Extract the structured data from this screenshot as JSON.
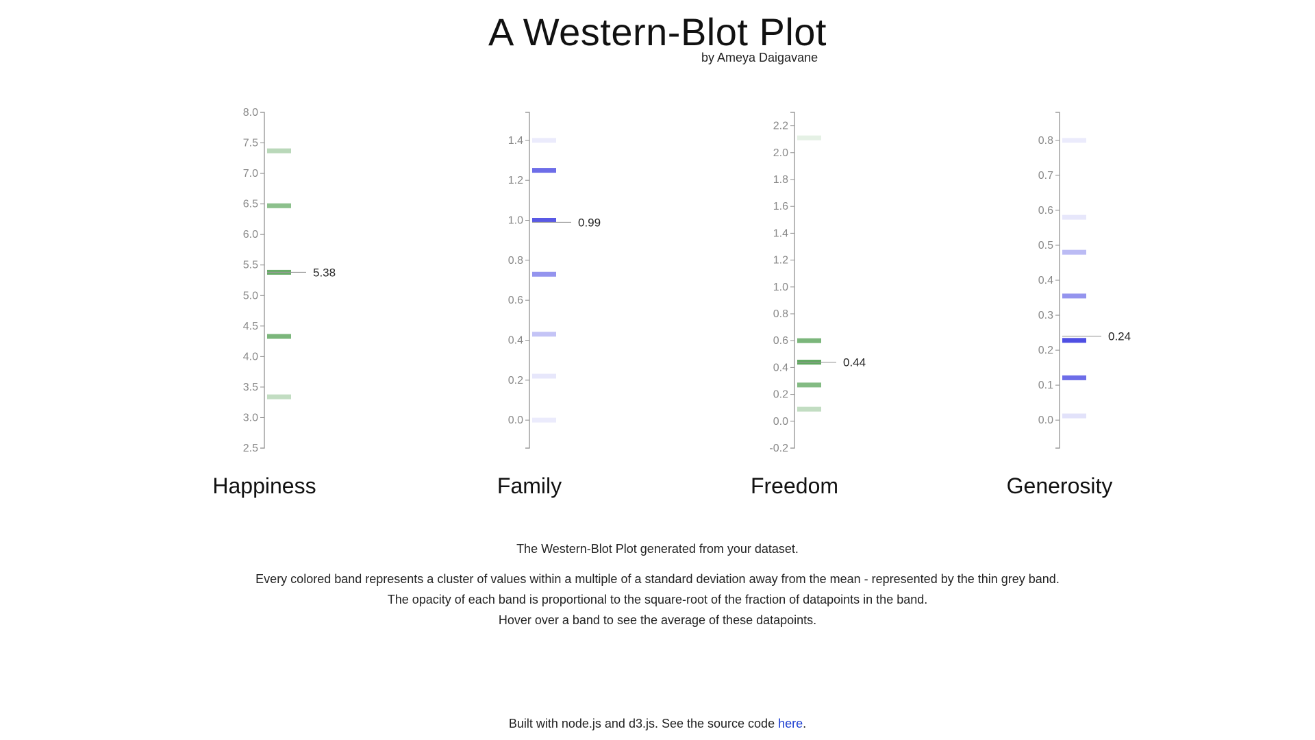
{
  "header": {
    "title": "A Western-Blot Plot",
    "byline": "by Ameya Daigavane"
  },
  "description": {
    "caption": "The Western-Blot Plot generated from your dataset.",
    "line1": "Every colored band represents a cluster of values within a multiple of a standard deviation away from the mean - represented by the thin grey band.",
    "line2": "The opacity of each band is proportional to the square-root of the fraction of datapoints in the band.",
    "line3": "Hover over a band to see the average of these datapoints."
  },
  "footer": {
    "text": "Built with node.js and d3.js. See the source code ",
    "link_text": "here",
    "suffix": "."
  },
  "colors": {
    "green": "#4f9e4f",
    "blue": "#3c3ce0",
    "axis": "#888888",
    "mean_line": "#999999",
    "link": "#1a3cd0"
  },
  "chart_data": [
    {
      "type": "bar",
      "xlabel": "Happiness",
      "color": "green",
      "ylim": [
        2.5,
        8.0
      ],
      "ticks": [
        2.5,
        3.0,
        3.5,
        4.0,
        4.5,
        5.0,
        5.5,
        6.0,
        6.5,
        7.0,
        7.5,
        8.0
      ],
      "tick_labels": [
        "2.5",
        "3.0",
        "3.5",
        "4.0",
        "4.5",
        "5.0",
        "5.5",
        "6.0",
        "6.5",
        "7.0",
        "7.5",
        "8.0"
      ],
      "mean": 5.38,
      "mean_label": "5.38",
      "bands": [
        {
          "value": 7.37,
          "opacity": 0.4
        },
        {
          "value": 6.47,
          "opacity": 0.65
        },
        {
          "value": 5.38,
          "opacity": 0.85
        },
        {
          "value": 4.33,
          "opacity": 0.75
        },
        {
          "value": 3.34,
          "opacity": 0.35
        }
      ]
    },
    {
      "type": "bar",
      "xlabel": "Family",
      "color": "blue",
      "ylim": [
        -0.14,
        1.54
      ],
      "ticks": [
        0.0,
        0.2,
        0.4,
        0.6,
        0.8,
        1.0,
        1.2,
        1.4
      ],
      "tick_labels": [
        "0.0",
        "0.2",
        "0.4",
        "0.6",
        "0.8",
        "1.0",
        "1.2",
        "1.4"
      ],
      "mean": 0.99,
      "mean_label": "0.99",
      "bands": [
        {
          "value": 1.4,
          "opacity": 0.1
        },
        {
          "value": 1.25,
          "opacity": 0.75
        },
        {
          "value": 1.0,
          "opacity": 0.85
        },
        {
          "value": 0.73,
          "opacity": 0.55
        },
        {
          "value": 0.43,
          "opacity": 0.3
        },
        {
          "value": 0.22,
          "opacity": 0.12
        },
        {
          "value": 0.0,
          "opacity": 0.1
        }
      ]
    },
    {
      "type": "bar",
      "xlabel": "Freedom",
      "color": "green",
      "ylim": [
        -0.2,
        2.3
      ],
      "ticks": [
        -0.2,
        0.0,
        0.2,
        0.4,
        0.6,
        0.8,
        1.0,
        1.2,
        1.4,
        1.6,
        1.8,
        2.0,
        2.2
      ],
      "tick_labels": [
        "-0.2",
        "0.0",
        "0.2",
        "0.4",
        "0.6",
        "0.8",
        "1.0",
        "1.2",
        "1.4",
        "1.6",
        "1.8",
        "2.0",
        "2.2"
      ],
      "mean": 0.44,
      "mean_label": "0.44",
      "bands": [
        {
          "value": 2.11,
          "opacity": 0.15
        },
        {
          "value": 0.6,
          "opacity": 0.75
        },
        {
          "value": 0.44,
          "opacity": 0.9
        },
        {
          "value": 0.27,
          "opacity": 0.7
        },
        {
          "value": 0.09,
          "opacity": 0.35
        }
      ]
    },
    {
      "type": "bar",
      "xlabel": "Generosity",
      "color": "blue",
      "ylim": [
        -0.08,
        0.88
      ],
      "ticks": [
        0.0,
        0.1,
        0.2,
        0.3,
        0.4,
        0.5,
        0.6,
        0.7,
        0.8
      ],
      "tick_labels": [
        "0.0",
        "0.1",
        "0.2",
        "0.3",
        "0.4",
        "0.5",
        "0.6",
        "0.7",
        "0.8"
      ],
      "mean": 0.24,
      "mean_label": "0.24",
      "bands": [
        {
          "value": 0.8,
          "opacity": 0.1
        },
        {
          "value": 0.58,
          "opacity": 0.12
        },
        {
          "value": 0.48,
          "opacity": 0.35
        },
        {
          "value": 0.355,
          "opacity": 0.55
        },
        {
          "value": 0.228,
          "opacity": 0.9
        },
        {
          "value": 0.121,
          "opacity": 0.75
        },
        {
          "value": 0.012,
          "opacity": 0.15
        }
      ]
    }
  ]
}
